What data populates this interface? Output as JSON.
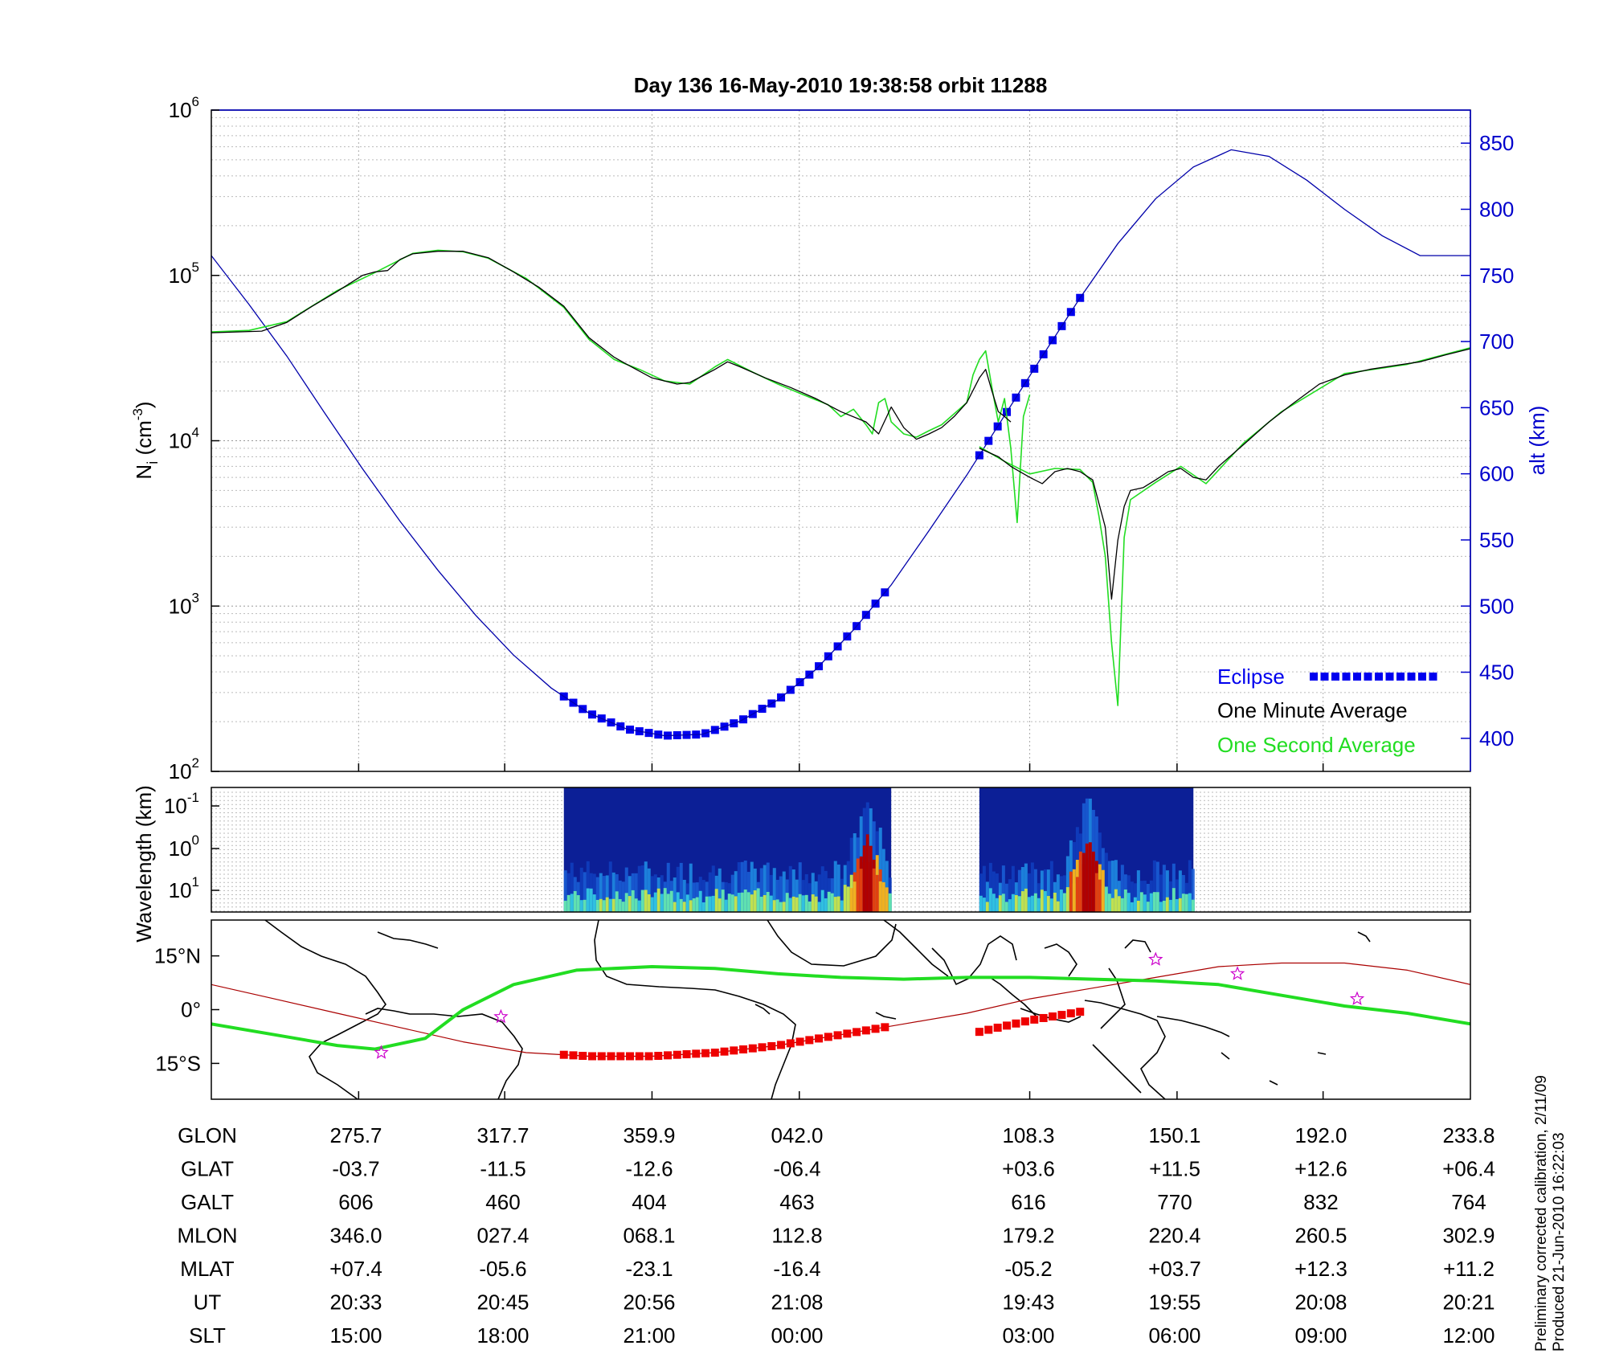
{
  "chart_data": {
    "title": "Day 136  16-May-2010 19:38:58   orbit 11288",
    "density_panel": {
      "type": "line",
      "ylabel_main": "N",
      "ylabel_sub": "i",
      "ylabel_unit": " (cm",
      "ylabel_exp": "-3",
      "ylabel_close": ")",
      "yscale": "log",
      "ylim": [
        100,
        1000000
      ],
      "y_ticks": [
        {
          "base": "10",
          "exp": "2"
        },
        {
          "base": "10",
          "exp": "3"
        },
        {
          "base": "10",
          "exp": "4"
        },
        {
          "base": "10",
          "exp": "5"
        },
        {
          "base": "10",
          "exp": "6"
        }
      ],
      "right_ylabel": "alt (km)",
      "right_ylim": [
        375,
        875
      ],
      "right_ticks": [
        "400",
        "450",
        "500",
        "550",
        "600",
        "650",
        "700",
        "750",
        "800",
        "850"
      ],
      "xlim": [
        0,
        1
      ],
      "one_minute_average": {
        "name": "One Minute Average",
        "color": "#000000",
        "segments": [
          [
            [
              0.0,
              45000
            ],
            [
              0.02,
              45500
            ],
            [
              0.04,
              46000
            ],
            [
              0.06,
              52000
            ],
            [
              0.08,
              65000
            ],
            [
              0.1,
              80000
            ],
            [
              0.12,
              100000
            ],
            [
              0.13,
              105000
            ],
            [
              0.14,
              107000
            ],
            [
              0.15,
              125000
            ],
            [
              0.16,
              135000
            ],
            [
              0.18,
              140000
            ],
            [
              0.2,
              140000
            ],
            [
              0.22,
              128000
            ],
            [
              0.24,
              105000
            ],
            [
              0.26,
              85000
            ],
            [
              0.28,
              65000
            ],
            [
              0.3,
              42000
            ],
            [
              0.32,
              32000
            ],
            [
              0.33,
              29000
            ],
            [
              0.35,
              24000
            ],
            [
              0.37,
              22000
            ],
            [
              0.38,
              22500
            ],
            [
              0.4,
              27000
            ],
            [
              0.41,
              30000
            ],
            [
              0.42,
              28000
            ],
            [
              0.44,
              24000
            ],
            [
              0.46,
              21000
            ],
            [
              0.48,
              18000
            ],
            [
              0.5,
              15000
            ],
            [
              0.52,
              13000
            ],
            [
              0.53,
              11000
            ],
            [
              0.54,
              16000
            ],
            [
              0.55,
              12000
            ],
            [
              0.56,
              10200
            ],
            [
              0.57,
              11000
            ],
            [
              0.58,
              12000
            ],
            [
              0.59,
              14000
            ],
            [
              0.6,
              17000
            ],
            [
              0.61,
              24000
            ],
            [
              0.615,
              27000
            ],
            [
              0.62,
              20000
            ],
            [
              0.625,
              15000
            ],
            [
              0.63,
              14000
            ],
            [
              0.635,
              13000
            ]
          ],
          [
            [
              0.61,
              9000
            ],
            [
              0.625,
              8000
            ],
            [
              0.635,
              7000
            ],
            [
              0.65,
              6000
            ],
            [
              0.66,
              5500
            ],
            [
              0.67,
              6500
            ],
            [
              0.68,
              6800
            ],
            [
              0.69,
              6500
            ],
            [
              0.7,
              5800
            ],
            [
              0.71,
              3000
            ],
            [
              0.715,
              1100
            ],
            [
              0.72,
              2500
            ],
            [
              0.725,
              4000
            ],
            [
              0.73,
              5000
            ],
            [
              0.74,
              5200
            ],
            [
              0.75,
              5800
            ],
            [
              0.76,
              6500
            ],
            [
              0.77,
              6800
            ],
            [
              0.78,
              6000
            ],
            [
              0.79,
              5800
            ],
            [
              0.8,
              7000
            ],
            [
              0.82,
              9500
            ],
            [
              0.84,
              13000
            ],
            [
              0.86,
              17000
            ],
            [
              0.88,
              22000
            ],
            [
              0.9,
              25000
            ],
            [
              0.92,
              27000
            ],
            [
              0.94,
              28500
            ],
            [
              0.96,
              30000
            ],
            [
              0.98,
              33000
            ],
            [
              1.0,
              36000
            ]
          ]
        ]
      },
      "one_second_average": {
        "name": "One Second Average",
        "color": "#22dd22",
        "segments": [
          [
            [
              0.0,
              45500
            ],
            [
              0.03,
              46500
            ],
            [
              0.06,
              52500
            ],
            [
              0.1,
              81000
            ],
            [
              0.13,
              104000
            ],
            [
              0.16,
              136000
            ],
            [
              0.18,
              142000
            ],
            [
              0.2,
              139000
            ],
            [
              0.22,
              127000
            ],
            [
              0.25,
              96000
            ],
            [
              0.28,
              64000
            ],
            [
              0.3,
              41000
            ],
            [
              0.32,
              31000
            ],
            [
              0.34,
              27000
            ],
            [
              0.36,
              23000
            ],
            [
              0.38,
              22000
            ],
            [
              0.4,
              28000
            ],
            [
              0.41,
              31000
            ],
            [
              0.43,
              26000
            ],
            [
              0.45,
              22000
            ],
            [
              0.47,
              19000
            ],
            [
              0.49,
              16500
            ],
            [
              0.5,
              14000
            ],
            [
              0.51,
              15500
            ],
            [
              0.52,
              12500
            ],
            [
              0.525,
              11000
            ],
            [
              0.53,
              17000
            ],
            [
              0.535,
              18000
            ],
            [
              0.54,
              13000
            ],
            [
              0.55,
              11000
            ],
            [
              0.56,
              10500
            ],
            [
              0.57,
              11500
            ],
            [
              0.58,
              12500
            ],
            [
              0.6,
              17000
            ],
            [
              0.605,
              25000
            ],
            [
              0.61,
              31000
            ],
            [
              0.615,
              35000
            ],
            [
              0.62,
              21000
            ],
            [
              0.625,
              13000
            ],
            [
              0.63,
              18000
            ],
            [
              0.635,
              9000
            ],
            [
              0.64,
              3200
            ],
            [
              0.645,
              14000
            ],
            [
              0.65,
              19000
            ]
          ],
          [
            [
              0.61,
              9200
            ],
            [
              0.63,
              7500
            ],
            [
              0.65,
              6300
            ],
            [
              0.67,
              6800
            ],
            [
              0.69,
              6700
            ],
            [
              0.7,
              5600
            ],
            [
              0.705,
              3500
            ],
            [
              0.71,
              2000
            ],
            [
              0.715,
              600
            ],
            [
              0.72,
              250
            ],
            [
              0.725,
              2600
            ],
            [
              0.73,
              4400
            ],
            [
              0.75,
              5600
            ],
            [
              0.77,
              7000
            ],
            [
              0.79,
              5500
            ],
            [
              0.82,
              9700
            ],
            [
              0.85,
              15000
            ],
            [
              0.9,
              25500
            ],
            [
              0.95,
              29000
            ],
            [
              1.0,
              36500
            ]
          ]
        ]
      },
      "altitude": {
        "name": "alt (km)",
        "color": "#0000aa",
        "x": [
          0.0,
          0.03,
          0.06,
          0.09,
          0.12,
          0.15,
          0.18,
          0.21,
          0.24,
          0.27,
          0.3,
          0.33,
          0.36,
          0.39,
          0.42,
          0.45,
          0.48,
          0.51,
          0.54,
          0.57,
          0.6,
          0.63,
          0.66,
          0.69,
          0.72,
          0.75,
          0.78,
          0.81,
          0.84,
          0.87,
          0.9,
          0.93,
          0.96,
          0.99,
          1.0
        ],
        "y": [
          765,
          728,
          689,
          646,
          604,
          564,
          527,
          493,
          463,
          438,
          419,
          407,
          402,
          403,
          413,
          429,
          452,
          482,
          516,
          557,
          599,
          644,
          689,
          733,
          774,
          808,
          832,
          845,
          840,
          822,
          800,
          780,
          765,
          765,
          765
        ]
      },
      "eclipse": {
        "name": "Eclipse",
        "color": "#0000ee",
        "segments": [
          [
            0.28,
            0.535
          ],
          [
            0.61,
            0.69
          ]
        ]
      },
      "legend": [
        "Eclipse",
        "One Minute Average",
        "One Second Average"
      ]
    },
    "wavelength_panel": {
      "type": "heatmap",
      "ylabel": "Wavelength (km)",
      "y_ticks": [
        {
          "base": "10",
          "exp": "-1"
        },
        {
          "base": "10",
          "exp": "0"
        },
        {
          "base": "10",
          "exp": "1"
        }
      ],
      "blocks": [
        [
          0.28,
          0.54
        ],
        [
          0.61,
          0.78
        ]
      ],
      "hotspots": [
        0.52,
        0.695
      ]
    },
    "map_panel": {
      "type": "line",
      "y_ticks": [
        "15°N",
        "0°",
        "15°S"
      ],
      "ylim": [
        -25,
        25
      ],
      "geographic_track": {
        "color": "#22dd22",
        "x": [
          0.0,
          0.05,
          0.1,
          0.13,
          0.17,
          0.2,
          0.24,
          0.29,
          0.35,
          0.4,
          0.45,
          0.5,
          0.55,
          0.6,
          0.65,
          0.7,
          0.75,
          0.8,
          0.85,
          0.9,
          0.95,
          1.0
        ],
        "y": [
          -4,
          -7,
          -10,
          -11,
          -8,
          0,
          7,
          11,
          12,
          11.5,
          10,
          9,
          8.5,
          9,
          9,
          8.5,
          8,
          7,
          4,
          1,
          -1,
          -4
        ]
      },
      "magnetic_equator": {
        "color": "#aa0000",
        "x": [
          0.0,
          0.05,
          0.1,
          0.15,
          0.2,
          0.25,
          0.3,
          0.35,
          0.4,
          0.45,
          0.5,
          0.55,
          0.6,
          0.65,
          0.7,
          0.75,
          0.8,
          0.85,
          0.9,
          0.95,
          1.0
        ],
        "y": [
          7,
          3,
          -1,
          -5,
          -9,
          -12,
          -13,
          -13,
          -12,
          -10,
          -7,
          -4,
          -1,
          3,
          6,
          9,
          12,
          13,
          13,
          11,
          7
        ]
      },
      "eclipse_track": {
        "color": "#ee0000",
        "segments": [
          [
            0.28,
            0.535
          ],
          [
            0.61,
            0.69
          ]
        ]
      },
      "stars": [
        [
          0.135,
          -12
        ],
        [
          0.23,
          -2
        ],
        [
          0.75,
          14
        ],
        [
          0.815,
          10
        ],
        [
          0.91,
          3
        ]
      ]
    },
    "ephemeris": {
      "labels": [
        "GLON",
        "GLAT",
        "GALT",
        "MLON",
        "MLAT",
        "UT",
        "SLT"
      ],
      "columns": [
        {
          "GLON": "275.7",
          "GLAT": "-03.7",
          "GALT": "606",
          "MLON": "346.0",
          "MLAT": "+07.4",
          "UT": "20:33",
          "SLT": "15:00"
        },
        {
          "GLON": "317.7",
          "GLAT": "-11.5",
          "GALT": "460",
          "MLON": "027.4",
          "MLAT": "-05.6",
          "UT": "20:45",
          "SLT": "18:00"
        },
        {
          "GLON": "359.9",
          "GLAT": "-12.6",
          "GALT": "404",
          "MLON": "068.1",
          "MLAT": "-23.1",
          "UT": "20:56",
          "SLT": "21:00"
        },
        {
          "GLON": "042.0",
          "GLAT": "-06.4",
          "GALT": "463",
          "MLON": "112.8",
          "MLAT": "-16.4",
          "UT": "21:08",
          "SLT": "00:00"
        },
        {
          "GLON": "108.3",
          "GLAT": "+03.6",
          "GALT": "616",
          "MLON": "179.2",
          "MLAT": "-05.2",
          "UT": "19:43",
          "SLT": "03:00"
        },
        {
          "GLON": "150.1",
          "GLAT": "+11.5",
          "GALT": "770",
          "MLON": "220.4",
          "MLAT": "+03.7",
          "UT": "19:55",
          "SLT": "06:00"
        },
        {
          "GLON": "192.0",
          "GLAT": "+12.6",
          "GALT": "832",
          "MLON": "260.5",
          "MLAT": "+12.3",
          "UT": "20:08",
          "SLT": "09:00"
        },
        {
          "GLON": "233.8",
          "GLAT": "+06.4",
          "GALT": "764",
          "MLON": "302.9",
          "MLAT": "+11.2",
          "UT": "20:21",
          "SLT": "12:00"
        }
      ]
    },
    "footer": {
      "line1": "Preliminary corrected calibration, 2/11/09",
      "line2": "Produced 21-Jun-2010 16:22:03"
    }
  }
}
